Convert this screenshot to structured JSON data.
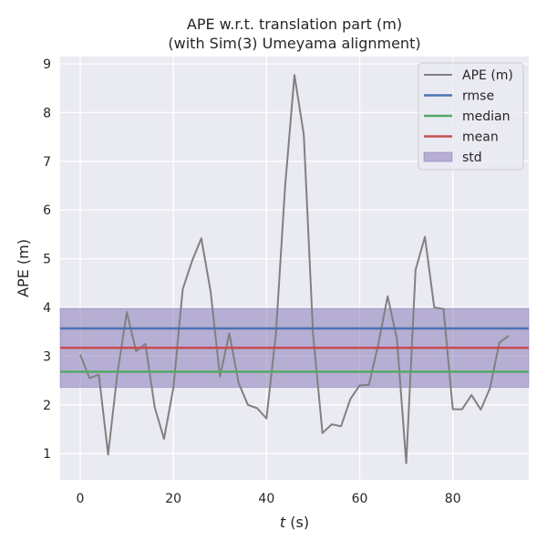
{
  "chart_data": {
    "type": "line",
    "title": "APE w.r.t. translation part (m)",
    "subtitle": "(with Sim(3) Umeyama alignment)",
    "xlabel_italic": "t",
    "xlabel_unit": " (s)",
    "ylabel": "APE (m)",
    "xlim": [
      -4.3,
      96.3
    ],
    "ylim": [
      0.46,
      9.15
    ],
    "xticks": [
      0,
      20,
      40,
      60,
      80
    ],
    "yticks": [
      1,
      2,
      3,
      4,
      5,
      6,
      7,
      8,
      9
    ],
    "grid": true,
    "legend_position": "top-right",
    "series": [
      {
        "name": "APE (m)",
        "color": "#808080",
        "x": [
          0,
          2,
          4,
          6,
          8,
          10,
          12,
          14,
          16,
          18,
          20,
          22,
          24,
          26,
          28,
          30,
          32,
          34,
          36,
          38,
          40,
          42,
          44,
          46,
          48,
          50,
          52,
          54,
          56,
          58,
          60,
          62,
          64,
          66,
          68,
          70,
          72,
          74,
          76,
          78,
          80,
          82,
          84,
          86,
          88,
          90,
          92
        ],
        "y": [
          3.03,
          2.55,
          2.62,
          0.98,
          2.65,
          3.9,
          3.1,
          3.25,
          1.95,
          1.3,
          2.35,
          4.37,
          4.95,
          5.42,
          4.33,
          2.58,
          3.47,
          2.45,
          2.0,
          1.93,
          1.72,
          3.45,
          6.5,
          8.77,
          7.55,
          3.45,
          1.42,
          1.6,
          1.56,
          2.12,
          2.4,
          2.41,
          3.25,
          4.23,
          3.35,
          0.8,
          4.77,
          5.45,
          4.0,
          3.97,
          1.91,
          1.91,
          2.2,
          1.9,
          2.35,
          3.28,
          3.42
        ]
      }
    ],
    "stats": {
      "rmse": {
        "name": "rmse",
        "value": 3.57,
        "color": "#4c72b0"
      },
      "median": {
        "name": "median",
        "value": 2.68,
        "color": "#55a868"
      },
      "mean": {
        "name": "mean",
        "value": 3.17,
        "color": "#c44e52"
      },
      "std": {
        "name": "std",
        "range": [
          2.36,
          3.98
        ],
        "color": "#8172b3"
      }
    }
  }
}
